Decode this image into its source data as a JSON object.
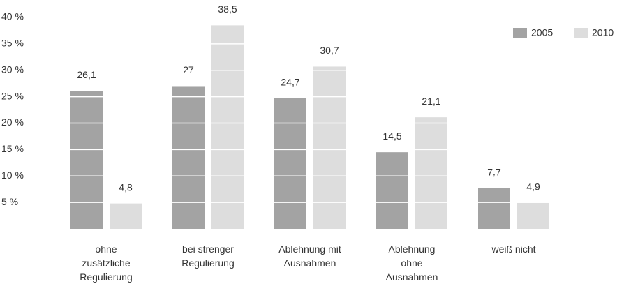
{
  "chart_data": {
    "type": "bar",
    "categories": [
      "ohne\nzusätzliche\nRegulierung",
      "bei strenger\nRegulierung",
      "Ablehnung mit\nAusnahmen",
      "Ablehnung\nohne\nAusnahmen",
      "weiß nicht"
    ],
    "series": [
      {
        "name": "2005",
        "color": "#a3a3a3",
        "values": [
          26.1,
          27,
          24.7,
          14.5,
          7.7
        ],
        "value_labels": [
          "26,1",
          "27",
          "24,7",
          "14,5",
          "7,7"
        ]
      },
      {
        "name": "2010",
        "color": "#dddddd",
        "values": [
          4.8,
          38.5,
          30.7,
          21.1,
          4.9
        ],
        "value_labels": [
          "4,8",
          "38,5",
          "30,7",
          "21,1",
          "4,9"
        ]
      }
    ],
    "ylim": [
      0,
      40
    ],
    "yticks": [
      {
        "value": 5,
        "label": "5 %"
      },
      {
        "value": 10,
        "label": "10 %"
      },
      {
        "value": 15,
        "label": "15 %"
      },
      {
        "value": 20,
        "label": "20 %"
      },
      {
        "value": 25,
        "label": "25 %"
      },
      {
        "value": 30,
        "label": "30 %"
      },
      {
        "value": 35,
        "label": "35 %"
      },
      {
        "value": 40,
        "label": "40 %"
      }
    ],
    "grid": true,
    "grid_color": "#ffffff",
    "legend": "top-right"
  }
}
